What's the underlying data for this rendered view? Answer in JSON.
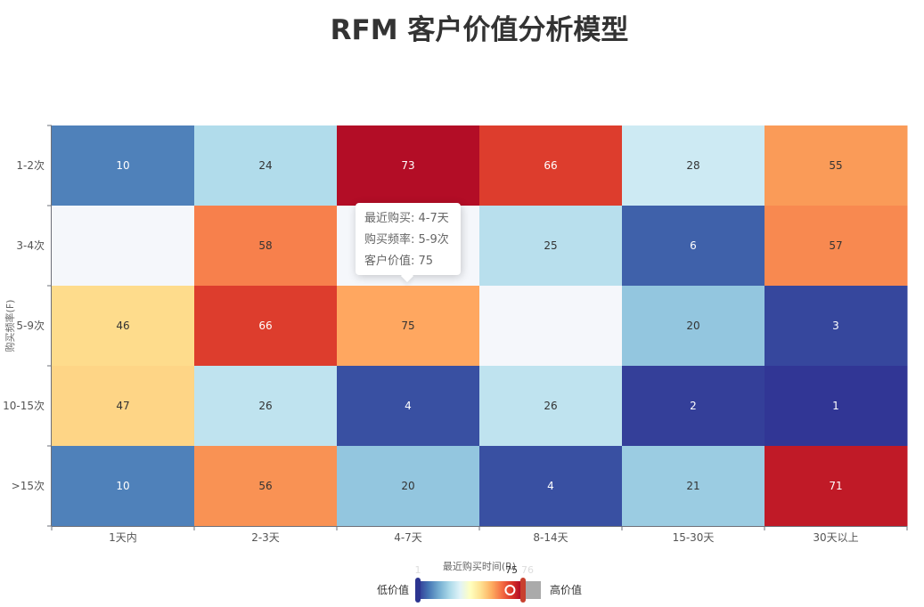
{
  "chart_data": {
    "type": "heatmap",
    "title": "RFM 客户价值分析模型",
    "xlabel": "最近购买时间(R)",
    "ylabel": "购买频率(F)",
    "x_categories": [
      "1天内",
      "2-3天",
      "4-7天",
      "8-14天",
      "15-30天",
      "30天以上"
    ],
    "y_categories": [
      ">15次",
      "10-15次",
      "5-9次",
      "3-4次",
      "1-2次"
    ],
    "values": [
      [
        10,
        56,
        20,
        4,
        21,
        71
      ],
      [
        47,
        26,
        4,
        26,
        2,
        1
      ],
      [
        46,
        66,
        75,
        null,
        20,
        3
      ],
      [
        null,
        58,
        null,
        25,
        6,
        57
      ],
      [
        10,
        24,
        73,
        66,
        28,
        55
      ]
    ],
    "colors": {
      "highlight_cell": "#ffa760",
      "empty_cell": "#f5f7fb"
    },
    "visual_map": {
      "min": 1,
      "max": 75,
      "low_label": "低价值",
      "high_label": "高价值",
      "current_value": "75",
      "ghost_min": "1",
      "ghost_max": "76",
      "colors": [
        "#313695",
        "#4575b4",
        "#74add1",
        "#abd9e9",
        "#e0f3f8",
        "#ffffbf",
        "#fee090",
        "#fdae61",
        "#f46d43",
        "#d73027",
        "#a50026"
      ]
    },
    "tooltip": {
      "recency_label": "最近购买",
      "recency_value": "4-7天",
      "frequency_label": "购买频率",
      "frequency_value": "5-9次",
      "value_label": "客户价值",
      "value": "75"
    }
  }
}
